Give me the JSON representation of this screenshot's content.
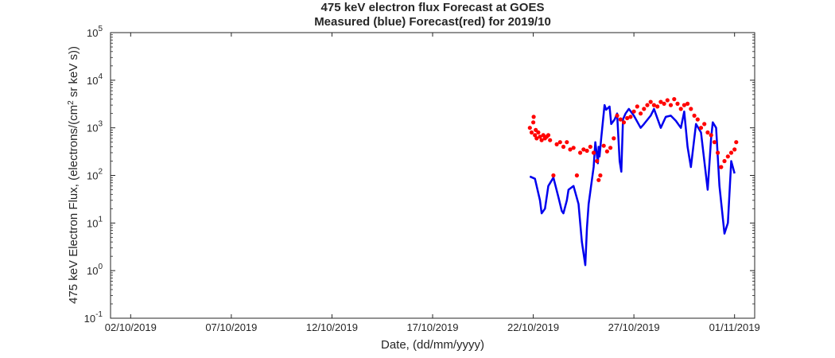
{
  "chart_data": {
    "type": "line",
    "title": "475 keV electron flux Forecast at GOES",
    "subtitle": "Measured (blue) Forecast(red) for 2019/10",
    "xlabel": "Date, (dd/mm/yyyy)",
    "ylabel": "475 keV Electron Flux, (electrons/(cm² sr keV s))",
    "ylabel_parts": [
      "475 keV Electron Flux, (electrons/(cm",
      "2",
      " sr keV s))"
    ],
    "yscale": "log",
    "xlim": [
      "2019-10-01",
      "2019-11-02"
    ],
    "ylim": [
      0.1,
      100000
    ],
    "xticks": [
      "02/10/2019",
      "07/10/2019",
      "12/10/2019",
      "17/10/2019",
      "22/10/2019",
      "27/10/2019",
      "01/11/2019"
    ],
    "yticks": [
      {
        "base": "10",
        "exp": "-1"
      },
      {
        "base": "10",
        "exp": "0"
      },
      {
        "base": "10",
        "exp": "1"
      },
      {
        "base": "10",
        "exp": "2"
      },
      {
        "base": "10",
        "exp": "3"
      },
      {
        "base": "10",
        "exp": "4"
      },
      {
        "base": "10",
        "exp": "5"
      }
    ],
    "grid": false,
    "series": [
      {
        "name": "Measured",
        "style": "line",
        "color": "#0000ee",
        "x": [
          "2019-10-21 20:00",
          "2019-10-22 02:00",
          "2019-10-22 08:00",
          "2019-10-22 10:00",
          "2019-10-22 14:00",
          "2019-10-22 18:00",
          "2019-10-23 00:00",
          "2019-10-23 06:00",
          "2019-10-23 10:00",
          "2019-10-23 12:00",
          "2019-10-23 16:00",
          "2019-10-23 18:00",
          "2019-10-24 00:00",
          "2019-10-24 06:00",
          "2019-10-24 10:00",
          "2019-10-24 14:00",
          "2019-10-24 16:00",
          "2019-10-24 18:00",
          "2019-10-25 00:00",
          "2019-10-25 02:00",
          "2019-10-25 05:00",
          "2019-10-25 06:00",
          "2019-10-25 07:00",
          "2019-10-25 09:00",
          "2019-10-25 13:00",
          "2019-10-25 15:00",
          "2019-10-25 19:00",
          "2019-10-25 21:00",
          "2019-10-26 01:00",
          "2019-10-26 04:00",
          "2019-10-26 07:00",
          "2019-10-26 09:00",
          "2019-10-26 11:00",
          "2019-10-26 14:00",
          "2019-10-26 18:00",
          "2019-10-27 00:00",
          "2019-10-27 08:00",
          "2019-10-27 12:00",
          "2019-10-27 20:00",
          "2019-10-28 00:00",
          "2019-10-28 08:00",
          "2019-10-28 14:00",
          "2019-10-28 20:00",
          "2019-10-29 02:00",
          "2019-10-29 08:00",
          "2019-10-29 12:00",
          "2019-10-29 16:00",
          "2019-10-29 20:00",
          "2019-10-30 02:00",
          "2019-10-30 08:00",
          "2019-10-30 12:00",
          "2019-10-30 16:00",
          "2019-10-30 20:00",
          "2019-10-30 22:00",
          "2019-10-31 02:00",
          "2019-10-31 06:00",
          "2019-10-31 12:00",
          "2019-10-31 16:00",
          "2019-10-31 20:00",
          "2019-11-01 00:00"
        ],
        "y": [
          95,
          85,
          30,
          16,
          20,
          60,
          90,
          35,
          18,
          16,
          30,
          50,
          60,
          25,
          4,
          1.3,
          8,
          25,
          150,
          500,
          180,
          400,
          250,
          600,
          3000,
          2400,
          2800,
          1200,
          1500,
          2000,
          200,
          120,
          1500,
          2000,
          2500,
          1800,
          1000,
          1200,
          1800,
          2500,
          1000,
          1700,
          1800,
          1400,
          1000,
          2200,
          400,
          150,
          1200,
          800,
          200,
          50,
          600,
          1300,
          1000,
          60,
          6,
          10,
          200,
          110
        ]
      },
      {
        "name": "Forecast",
        "style": "scatter",
        "color": "#ff0000",
        "x": [
          "2019-10-21 20:00",
          "2019-10-21 22:00",
          "2019-10-22 00:00",
          "2019-10-22 00:30",
          "2019-10-22 02:00",
          "2019-10-22 03:00",
          "2019-10-22 04:00",
          "2019-10-22 06:00",
          "2019-10-22 08:00",
          "2019-10-22 10:00",
          "2019-10-22 12:00",
          "2019-10-22 14:00",
          "2019-10-22 16:00",
          "2019-10-22 18:00",
          "2019-10-22 20:00",
          "2019-10-23 00:00",
          "2019-10-23 04:00",
          "2019-10-23 08:00",
          "2019-10-23 12:00",
          "2019-10-23 16:00",
          "2019-10-23 20:00",
          "2019-10-24 00:00",
          "2019-10-24 04:00",
          "2019-10-24 08:00",
          "2019-10-24 12:00",
          "2019-10-24 16:00",
          "2019-10-24 20:00",
          "2019-10-25 00:00",
          "2019-10-25 04:00",
          "2019-10-25 06:00",
          "2019-10-25 08:00",
          "2019-10-25 12:00",
          "2019-10-25 16:00",
          "2019-10-25 20:00",
          "2019-10-26 00:00",
          "2019-10-26 04:00",
          "2019-10-26 08:00",
          "2019-10-26 12:00",
          "2019-10-26 16:00",
          "2019-10-26 20:00",
          "2019-10-27 00:00",
          "2019-10-27 04:00",
          "2019-10-27 08:00",
          "2019-10-27 12:00",
          "2019-10-27 16:00",
          "2019-10-27 20:00",
          "2019-10-28 00:00",
          "2019-10-28 04:00",
          "2019-10-28 08:00",
          "2019-10-28 12:00",
          "2019-10-28 16:00",
          "2019-10-28 20:00",
          "2019-10-29 00:00",
          "2019-10-29 04:00",
          "2019-10-29 08:00",
          "2019-10-29 12:00",
          "2019-10-29 16:00",
          "2019-10-29 20:00",
          "2019-10-30 00:00",
          "2019-10-30 04:00",
          "2019-10-30 08:00",
          "2019-10-30 12:00",
          "2019-10-30 16:00",
          "2019-10-30 20:00",
          "2019-10-31 00:00",
          "2019-10-31 04:00",
          "2019-10-31 08:00",
          "2019-10-31 12:00",
          "2019-10-31 16:00",
          "2019-10-31 20:00",
          "2019-11-01 00:00",
          "2019-11-01 02:00"
        ],
        "y": [
          1000,
          800,
          1300,
          1700,
          700,
          900,
          600,
          800,
          650,
          550,
          700,
          600,
          650,
          700,
          550,
          100,
          450,
          500,
          400,
          500,
          350,
          380,
          100,
          300,
          350,
          330,
          400,
          300,
          200,
          80,
          100,
          420,
          320,
          380,
          600,
          1800,
          1500,
          1300,
          1600,
          1700,
          2200,
          2800,
          2000,
          2500,
          3000,
          3500,
          3000,
          2800,
          3500,
          3200,
          3800,
          3000,
          4000,
          3200,
          2500,
          3000,
          3200,
          2500,
          1800,
          1500,
          1000,
          1200,
          800,
          700,
          500,
          300,
          150,
          200,
          250,
          300,
          350,
          500
        ]
      }
    ]
  }
}
